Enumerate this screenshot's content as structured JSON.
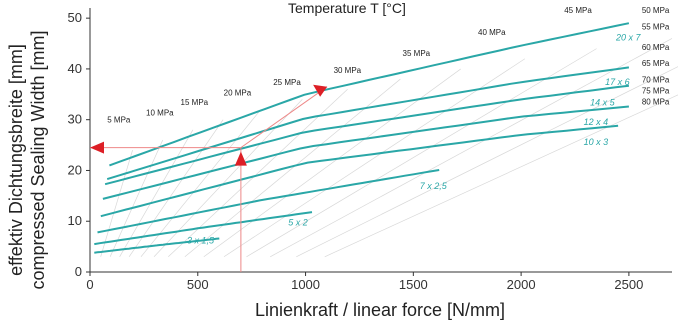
{
  "chart_data": {
    "type": "line",
    "top_title": "Temperature T   [°C]",
    "xlabel": "Linienkraft / linear force   [N/mm]",
    "ylabel_line1": "effektiv Dichtungsbreite [mm]",
    "ylabel_line2": "compressed Sealing Width [mm]",
    "xlim": [
      0,
      2700
    ],
    "ylim": [
      0,
      52
    ],
    "x_ticks": [
      0,
      500,
      1000,
      1500,
      2000,
      2500
    ],
    "y_ticks": [
      0,
      10,
      20,
      30,
      40,
      50
    ],
    "grid": false,
    "series_color": "#2aa7a7",
    "series": [
      {
        "name": "3 x 1,5",
        "points": [
          [
            20,
            3.8
          ],
          [
            300,
            5.2
          ],
          [
            600,
            6.6
          ]
        ]
      },
      {
        "name": "5 x 2",
        "points": [
          [
            20,
            5.5
          ],
          [
            500,
            8.6
          ],
          [
            1030,
            11.8
          ]
        ]
      },
      {
        "name": "7 x 2,5",
        "points": [
          [
            35,
            7.8
          ],
          [
            800,
            14.2
          ],
          [
            1620,
            20.1
          ]
        ]
      },
      {
        "name": "10 x 3",
        "points": [
          [
            50,
            11.0
          ],
          [
            1000,
            21.5
          ],
          [
            2000,
            27.0
          ],
          [
            2450,
            28.8
          ]
        ]
      },
      {
        "name": "12 x 4",
        "points": [
          [
            60,
            14.4
          ],
          [
            1000,
            24.6
          ],
          [
            2000,
            30.6
          ],
          [
            2500,
            32.6
          ]
        ]
      },
      {
        "name": "14 x 5",
        "points": [
          [
            70,
            17.3
          ],
          [
            1000,
            27.6
          ],
          [
            2000,
            34.0
          ],
          [
            2500,
            36.7
          ]
        ]
      },
      {
        "name": "17 x 6",
        "points": [
          [
            80,
            18.3
          ],
          [
            1000,
            30.3
          ],
          [
            2000,
            37.4
          ],
          [
            2500,
            40.3
          ]
        ]
      },
      {
        "name": "20 x 7",
        "points": [
          [
            90,
            21.0
          ],
          [
            1000,
            35.0
          ],
          [
            2000,
            44.6
          ],
          [
            2500,
            49.0
          ]
        ]
      }
    ],
    "series_label_positions": [
      {
        "name": "3 x 1,5",
        "x": 450,
        "y": 5.6
      },
      {
        "name": "5 x 2",
        "x": 920,
        "y": 9.2
      },
      {
        "name": "7 x 2,5",
        "x": 1530,
        "y": 16.3
      },
      {
        "name": "10 x 3",
        "x": 2290,
        "y": 25.0
      },
      {
        "name": "12 x 4",
        "x": 2290,
        "y": 29.0
      },
      {
        "name": "14 x 5",
        "x": 2320,
        "y": 32.8
      },
      {
        "name": "17 x 6",
        "x": 2390,
        "y": 36.8
      },
      {
        "name": "20 x 7",
        "x": 2440,
        "y": 45.6
      }
    ],
    "pressure_labels": [
      {
        "text": "5 MPa",
        "x": 80,
        "y": 29.4
      },
      {
        "text": "10 MPa",
        "x": 260,
        "y": 30.8
      },
      {
        "text": "15 MPa",
        "x": 420,
        "y": 32.9
      },
      {
        "text": "20 MPa",
        "x": 620,
        "y": 34.8
      },
      {
        "text": "25 MPa",
        "x": 850,
        "y": 36.8
      },
      {
        "text": "30 MPa",
        "x": 1130,
        "y": 39.2
      },
      {
        "text": "35 MPa",
        "x": 1450,
        "y": 42.5
      },
      {
        "text": "40 MPa",
        "x": 1800,
        "y": 46.7
      },
      {
        "text": "45 MPa",
        "x": 2200,
        "y": 51.0
      },
      {
        "text": "50 MPa",
        "x": 2560,
        "y": 51.0
      },
      {
        "text": "55 MPa",
        "x": 2560,
        "y": 47.8
      },
      {
        "text": "60 MPa",
        "x": 2560,
        "y": 43.7
      },
      {
        "text": "65 MPa",
        "x": 2560,
        "y": 40.6
      },
      {
        "text": "70 MPa",
        "x": 2560,
        "y": 37.3
      },
      {
        "text": "75 MPa",
        "x": 2560,
        "y": 35.2
      },
      {
        "text": "80 MPa",
        "x": 2560,
        "y": 33.0
      }
    ],
    "example_reading": {
      "x": 700,
      "y_at_line": 24.5,
      "y_arrow_target": 36.5,
      "x_arrow_target": 1100,
      "line_color": "#e88",
      "arrow_color": "#dd1f26"
    }
  }
}
